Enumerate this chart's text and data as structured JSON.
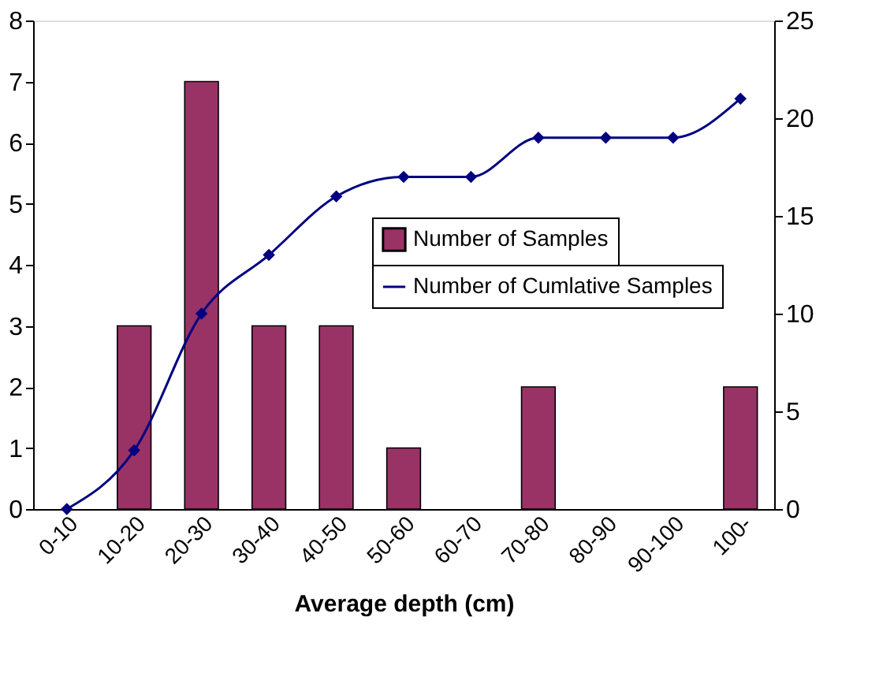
{
  "chart_data": {
    "type": "bar",
    "xlabel": "Average depth (cm)",
    "categories": [
      "0-10",
      "10-20",
      "20-30",
      "30-40",
      "40-50",
      "50-60",
      "60-70",
      "70-80",
      "80-90",
      "90-100",
      "100-"
    ],
    "series": [
      {
        "name": "Number of Samples",
        "color": "#993366",
        "values": [
          0,
          3,
          7,
          3,
          3,
          1,
          0,
          2,
          0,
          0,
          2
        ]
      },
      {
        "name": "Number of Cumlative Samples",
        "type": "line",
        "axis": "y2",
        "color": "#000080",
        "marker": "diamond",
        "values": [
          0,
          3,
          10,
          13,
          16,
          17,
          17,
          19,
          19,
          19,
          21
        ]
      }
    ],
    "ylim": [
      0,
      8
    ],
    "yticks": [
      0,
      1,
      2,
      3,
      4,
      5,
      6,
      7,
      8
    ],
    "y2lim": [
      0,
      25
    ],
    "y2ticks": [
      0,
      5,
      10,
      15,
      20,
      25
    ],
    "grid": false,
    "legend": "right"
  }
}
